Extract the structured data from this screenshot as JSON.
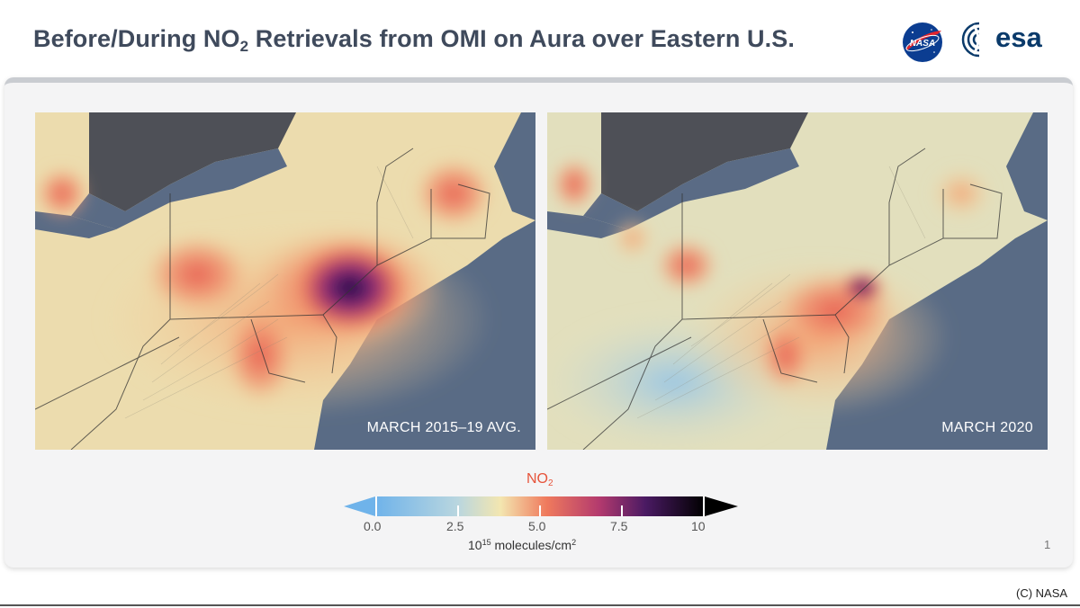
{
  "header": {
    "title_before": "Before/During NO",
    "title_sub": "2",
    "title_after": " Retrievals from OMI on Aura over Eastern U.S.",
    "logos": [
      "nasa-logo",
      "esa-logo"
    ],
    "esa_word": "esa",
    "nasa_word": "NASA"
  },
  "maps": [
    {
      "label": "MARCH 2015–19 AVG."
    },
    {
      "label": "MARCH 2020"
    }
  ],
  "colorbar": {
    "title_main": "NO",
    "title_sub": "2",
    "ticks": [
      "0.0",
      "2.5",
      "5.0",
      "7.5",
      "10"
    ],
    "unit_base": "10",
    "unit_exp": "15",
    "unit_rest": " molecules/cm",
    "unit_exp2": "2",
    "colors": [
      "#6fb3ea",
      "#f3e6b0",
      "#ef7a5d",
      "#8a2f7c",
      "#000000"
    ]
  },
  "page_number": "1",
  "credit": "(C) NASA"
}
